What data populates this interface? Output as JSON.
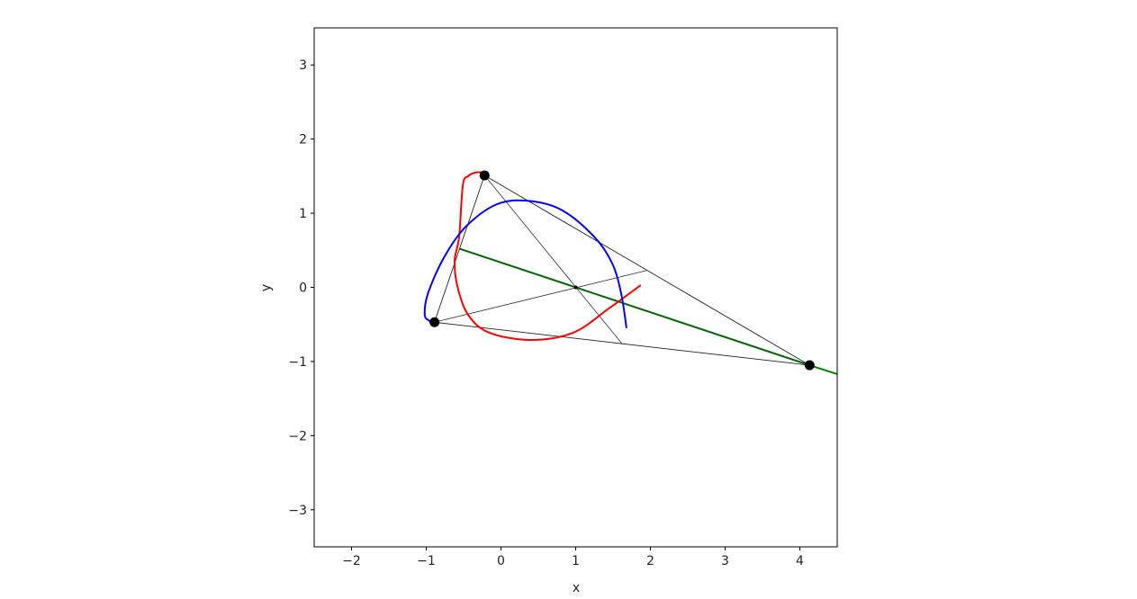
{
  "chart_data": {
    "type": "line",
    "title": "",
    "xlabel": "x",
    "ylabel": "y",
    "xlim": [
      -2.5,
      4.5
    ],
    "ylim": [
      -3.5,
      3.5
    ],
    "xticks": [
      -2,
      -1,
      0,
      1,
      2,
      3,
      4
    ],
    "yticks": [
      -3,
      -2,
      -1,
      0,
      1,
      2,
      3
    ],
    "grid": false,
    "colors": {
      "red": "#ff0000",
      "blue": "#0000ff",
      "dark_green": "#006400",
      "green": "#008000",
      "black": "#000000"
    },
    "vertices": [
      [
        -0.22,
        1.51
      ],
      [
        -0.89,
        -0.47
      ],
      [
        4.13,
        -1.05
      ]
    ],
    "centroid": [
      1.0,
      0.0
    ],
    "medians": [
      {
        "from": [
          -0.22,
          1.51
        ],
        "to": [
          1.62,
          -0.76
        ]
      },
      {
        "from": [
          -0.89,
          -0.47
        ],
        "to": [
          1.96,
          0.23
        ]
      }
    ],
    "green_line": {
      "from": [
        -0.55,
        0.52
      ],
      "to": [
        4.13,
        -1.05
      ],
      "extension_to": [
        4.5,
        -1.17
      ]
    },
    "red_curve": [
      [
        -0.25,
        1.55
      ],
      [
        -0.34,
        1.55
      ],
      [
        -0.44,
        1.5
      ],
      [
        -0.51,
        1.38
      ],
      [
        -0.56,
        0.68
      ],
      [
        -0.62,
        0.36
      ],
      [
        -0.58,
        0.0
      ],
      [
        -0.44,
        -0.37
      ],
      [
        -0.16,
        -0.61
      ],
      [
        0.4,
        -0.71
      ],
      [
        0.97,
        -0.61
      ],
      [
        1.45,
        -0.28
      ],
      [
        1.87,
        0.03
      ]
    ],
    "blue_curve": [
      [
        1.68,
        -0.55
      ],
      [
        1.61,
        -0.09
      ],
      [
        1.49,
        0.32
      ],
      [
        1.25,
        0.68
      ],
      [
        0.8,
        1.05
      ],
      [
        0.32,
        1.17
      ],
      [
        -0.08,
        1.11
      ],
      [
        -0.48,
        0.81
      ],
      [
        -0.77,
        0.39
      ],
      [
        -0.98,
        -0.09
      ],
      [
        -1.02,
        -0.37
      ],
      [
        -0.96,
        -0.45
      ],
      [
        -0.89,
        -0.47
      ]
    ]
  }
}
